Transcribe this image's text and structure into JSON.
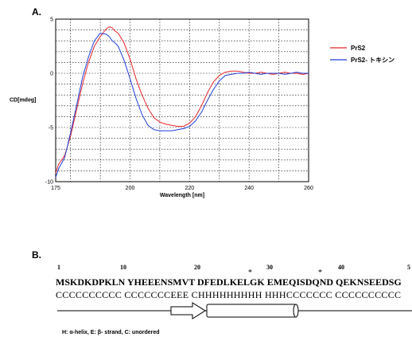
{
  "panel_a_label": "A.",
  "panel_b_label": "B.",
  "chart_data": {
    "type": "line",
    "xlabel": "Wavelength [nm]",
    "ylabel": "CD[mdeg]",
    "xlim": [
      175,
      260
    ],
    "ylim": [
      -10,
      5
    ],
    "xticks": [
      175,
      200,
      220,
      240,
      260
    ],
    "yticks": [
      5,
      0,
      -5,
      -10
    ],
    "grid": true,
    "legend_position": "right",
    "series": [
      {
        "name": "PrS2",
        "color": "#e8262a",
        "x": [
          175,
          176,
          178,
          180,
          182,
          184,
          186,
          188,
          190,
          192,
          193,
          194,
          195,
          196,
          198,
          200,
          202,
          204,
          206,
          208,
          210,
          212,
          214,
          216,
          218,
          220,
          222,
          224,
          226,
          228,
          230,
          232,
          234,
          236,
          238,
          240,
          242,
          244,
          246,
          248,
          250,
          252,
          254,
          256,
          258,
          260
        ],
        "y": [
          -9.2,
          -8.4,
          -7.6,
          -5.8,
          -3.4,
          -1.0,
          1.0,
          2.5,
          3.4,
          4.1,
          4.3,
          4.2,
          3.9,
          3.7,
          2.8,
          1.3,
          -0.5,
          -2.0,
          -3.2,
          -4.1,
          -4.5,
          -4.7,
          -4.8,
          -4.9,
          -4.9,
          -4.6,
          -4.0,
          -3.0,
          -1.8,
          -0.8,
          -0.2,
          0.1,
          0.2,
          0.2,
          0.1,
          0.0,
          0.0,
          0.1,
          0.0,
          -0.1,
          0.0,
          0.1,
          0.0,
          0.0,
          -0.1,
          0.0
        ]
      },
      {
        "name": "PrS2- トキシン",
        "color": "#1f3fd8",
        "x": [
          175,
          176,
          178,
          180,
          182,
          184,
          186,
          188,
          190,
          192,
          193,
          194,
          195,
          196,
          198,
          200,
          202,
          204,
          206,
          208,
          210,
          212,
          214,
          216,
          218,
          220,
          222,
          224,
          226,
          228,
          230,
          232,
          234,
          236,
          238,
          240,
          242,
          244,
          246,
          248,
          250,
          252,
          254,
          256,
          258,
          260
        ],
        "y": [
          -9.6,
          -8.8,
          -7.8,
          -5.5,
          -3.0,
          -0.4,
          1.5,
          3.0,
          3.7,
          3.6,
          3.4,
          3.0,
          2.8,
          2.5,
          1.2,
          -0.5,
          -2.3,
          -3.8,
          -4.8,
          -5.2,
          -5.3,
          -5.3,
          -5.3,
          -5.2,
          -5.1,
          -4.9,
          -4.4,
          -3.6,
          -2.5,
          -1.5,
          -0.7,
          -0.2,
          -0.1,
          0.0,
          0.0,
          0.1,
          0.0,
          -0.1,
          0.0,
          0.0,
          0.0,
          -0.1,
          0.0,
          0.1,
          0.0,
          0.0
        ]
      }
    ]
  },
  "sequence": {
    "position_numbers": [
      "1",
      "10",
      "20",
      "30",
      "40",
      "5"
    ],
    "asterisks": [
      "*",
      "*"
    ],
    "residues": "MSKDKDPKLN YHEEENSMVT DFEDLKELGK EMEQISDQND QEKNSEEDSG",
    "structure": "CCCCCCCCCC CCCCCCCEEE CHHHHHHHHH HHHCCCCCCC CCCCCCCCCC",
    "footnote": "H: α-helix,  E: β- strand, C: unordered"
  }
}
